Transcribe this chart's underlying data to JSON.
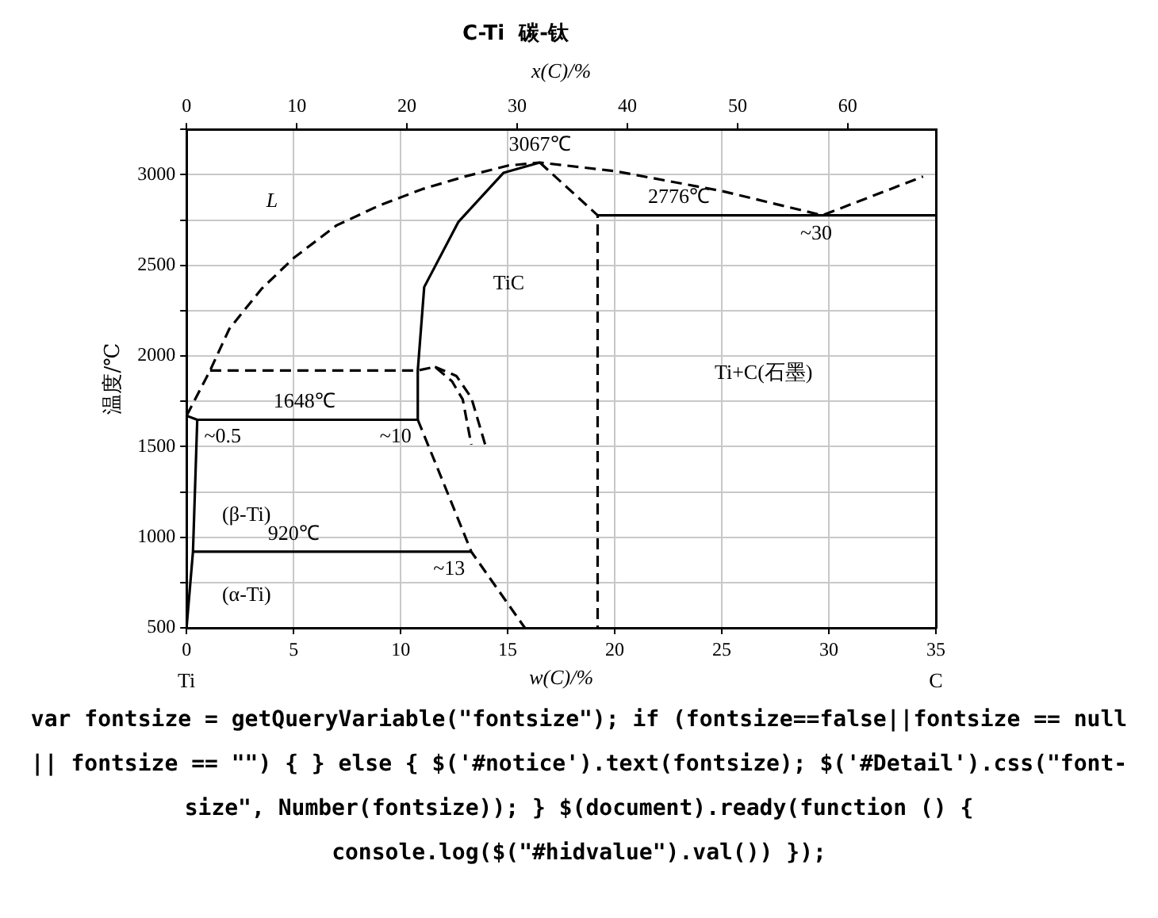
{
  "chart_data": {
    "type": "line",
    "title": "C-Ti  碳-钛",
    "xlabel": "w(C)/%",
    "x2label": "x(C)/%",
    "ylabel": "温度/℃",
    "xlim": [
      0,
      35
    ],
    "xticks": [
      0,
      5,
      10,
      15,
      20,
      25,
      30,
      35
    ],
    "x2lim": [
      0,
      68
    ],
    "x2ticks": [
      0,
      10,
      20,
      30,
      40,
      50,
      60
    ],
    "ylim": [
      500,
      3250
    ],
    "yticks": [
      500,
      {
        "value": 750,
        "label": null
      },
      1000,
      {
        "value": 1250,
        "label": null
      },
      1500,
      {
        "value": 1750,
        "label": null
      },
      2000,
      {
        "value": 2250,
        "label": null
      },
      2500,
      {
        "value": 2750,
        "label": null
      },
      3000,
      {
        "value": 3250,
        "label": null
      }
    ],
    "grid": true,
    "legend": false,
    "marker": "none",
    "series": [
      {
        "color": "#000000",
        "line_style": "dashed",
        "x": [
          0,
          1.1,
          2,
          3.5,
          5,
          7,
          9,
          11,
          13,
          15,
          16.5,
          20,
          25,
          29.7,
          34.4
        ],
        "values": [
          1670,
          1920,
          2150,
          2370,
          2540,
          2720,
          2830,
          2920,
          2990,
          3050,
          3067,
          3020,
          2910,
          2776,
          2990
        ]
      },
      {
        "color": "#000000",
        "line_style": "dashed",
        "x": [
          16.5,
          19.2,
          19.2
        ],
        "values": [
          3067,
          2776,
          500
        ]
      },
      {
        "color": "#000000",
        "line_style": "solid",
        "x": [
          0.5,
          10.8,
          10.8,
          11.1,
          12.7,
          14.8,
          16.5
        ],
        "values": [
          1648,
          1648,
          1920,
          2380,
          2740,
          3010,
          3067
        ]
      },
      {
        "color": "#000000",
        "line_style": "dashed",
        "x": [
          1.1,
          10.8,
          11.6,
          12.4,
          12.9,
          13.3
        ],
        "values": [
          1920,
          1920,
          1940,
          1860,
          1760,
          1510
        ]
      },
      {
        "color": "#000000",
        "line_style": "dashed",
        "x": [
          10.8,
          12,
          13.3,
          15.8
        ],
        "values": [
          1648,
          1300,
          920,
          500
        ]
      },
      {
        "color": "#000000",
        "line_style": "solid",
        "x": [
          0.3,
          13.3
        ],
        "values": [
          920,
          920
        ]
      },
      {
        "color": "#000000",
        "line_style": "solid",
        "x": [
          0,
          0.5,
          0.3,
          0
        ],
        "values": [
          1670,
          1648,
          920,
          500
        ]
      },
      {
        "color": "#000000",
        "line_style": "dashed",
        "x": [
          11.6,
          12.6,
          13.3,
          14
        ],
        "values": [
          1940,
          1890,
          1770,
          1490
        ]
      },
      {
        "color": "#000000",
        "line_style": "solid",
        "x": [
          19.2,
          35
        ],
        "values": [
          2776,
          2776
        ]
      }
    ],
    "annotations": [
      "L",
      "TiC",
      "Ti+C(石墨)",
      {
        "text": "3067℃",
        "x": 16.5,
        "y": 3067
      },
      {
        "text": "2776℃",
        "x": 23,
        "y": 2776
      },
      {
        "text": "~30",
        "x": 29.7,
        "y": 2776
      },
      {
        "text": "1648℃",
        "x": 5.5,
        "y": 1648
      },
      {
        "text": "~0.5",
        "x": 0.5,
        "y": 1648
      },
      {
        "text": "~10",
        "x": 10.8,
        "y": 1648
      },
      {
        "text": "920℃",
        "x": 5,
        "y": 920
      },
      {
        "text": "~13",
        "x": 13.3,
        "y": 920
      },
      "(β-Ti)",
      "(α-Ti)",
      "Ti",
      "C",
      "var fontsize = getQueryVariable(\"fontsize\"); if (fontsize==false||fontsize == null || fontsize == \"\") { } else { $('#notice').text(fontsize); $('#Detail').css(\"font-size\", Number(fontsize)); } $(document).ready(function () { console.log($(\"#hidvalue\").val()) });"
    ]
  }
}
